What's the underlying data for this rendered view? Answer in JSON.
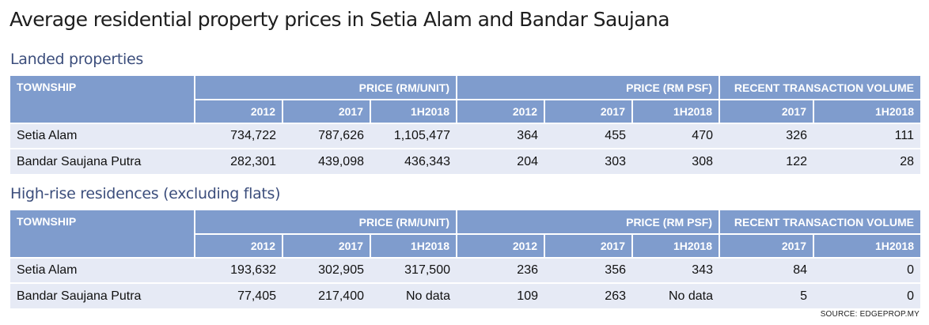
{
  "title": "Average residential property prices in Setia Alam and Bandar Saujana",
  "sections": [
    {
      "heading": "Landed properties",
      "group_headers": {
        "township": "TOWNSHIP",
        "price_unit": "PRICE (RM/UNIT)",
        "price_psf": "PRICE (RM PSF)",
        "volume": "RECENT TRANSACTION VOLUME"
      },
      "years": {
        "unit": [
          "2012",
          "2017",
          "1H2018"
        ],
        "psf": [
          "2012",
          "2017",
          "1H2018"
        ],
        "volume": [
          "2017",
          "1H2018"
        ]
      },
      "rows": [
        {
          "township": "Setia Alam",
          "unit": [
            "734,722",
            "787,626",
            "1,105,477"
          ],
          "psf": [
            "364",
            "455",
            "470"
          ],
          "volume": [
            "326",
            "111"
          ]
        },
        {
          "township": "Bandar Saujana Putra",
          "unit": [
            "282,301",
            "439,098",
            "436,343"
          ],
          "psf": [
            "204",
            "303",
            "308"
          ],
          "volume": [
            "122",
            "28"
          ]
        }
      ]
    },
    {
      "heading": "High-rise residences (excluding flats)",
      "group_headers": {
        "township": "TOWNSHIP",
        "price_unit": "PRICE (RM/UNIT)",
        "price_psf": "PRICE (RM PSF)",
        "volume": "RECENT TRANSACTION VOLUME"
      },
      "years": {
        "unit": [
          "2012",
          "2017",
          "1H2018"
        ],
        "psf": [
          "2012",
          "2017",
          "1H2018"
        ],
        "volume": [
          "2017",
          "1H2018"
        ]
      },
      "rows": [
        {
          "township": "Setia Alam",
          "unit": [
            "193,632",
            "302,905",
            "317,500"
          ],
          "psf": [
            "236",
            "356",
            "343"
          ],
          "volume": [
            "84",
            "0"
          ]
        },
        {
          "township": "Bandar Saujana Putra",
          "unit": [
            "77,405",
            "217,400",
            "No data"
          ],
          "psf": [
            "109",
            "263",
            "No data"
          ],
          "volume": [
            "5",
            "0"
          ]
        }
      ]
    }
  ],
  "source": "SOURCE: EDGEPROP.MY"
}
